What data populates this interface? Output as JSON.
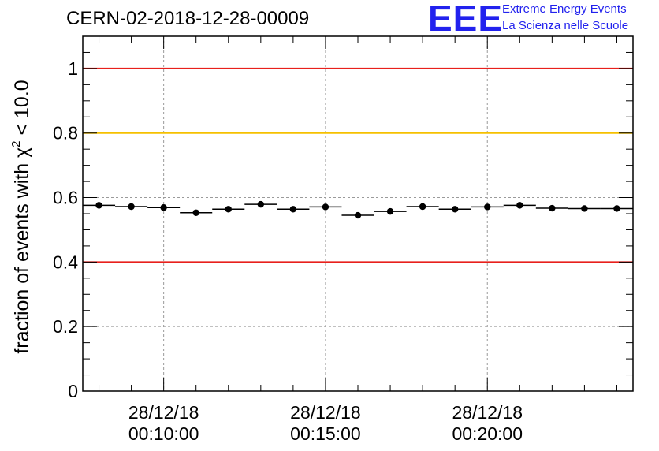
{
  "header": {
    "title": "CERN-02-2018-12-28-00009",
    "logo_mark": "EEE",
    "logo_line1": "Extreme Energy Events",
    "logo_line2": "La Scienza nelle Scuole"
  },
  "chart_data": {
    "type": "scatter",
    "title": "CERN-02-2018-12-28-00009",
    "ylabel": "fraction of events with χ² < 10.0",
    "ylabel_prefix": "fraction of events with χ",
    "ylabel_sup": "2",
    "ylabel_suffix": " < 10.0",
    "xlabel": "",
    "xlim": [
      7.5,
      24.5
    ],
    "ylim": [
      0,
      1.1
    ],
    "x_unit": "minutes after 00:00:00 on 28/12/18",
    "y_ticks": [
      {
        "value": 0,
        "label": "0"
      },
      {
        "value": 0.2,
        "label": "0.2"
      },
      {
        "value": 0.4,
        "label": "0.4"
      },
      {
        "value": 0.6,
        "label": "0.6"
      },
      {
        "value": 0.8,
        "label": "0.8"
      },
      {
        "value": 1.0,
        "label": "1"
      }
    ],
    "x_ticks": [
      {
        "value": 10,
        "date": "28/12/18",
        "time": "00:10:00"
      },
      {
        "value": 15,
        "date": "28/12/18",
        "time": "00:15:00"
      },
      {
        "value": 20,
        "date": "28/12/18",
        "time": "00:20:00"
      }
    ],
    "reference_lines": [
      {
        "y": 1.0,
        "color": "#e8201c"
      },
      {
        "y": 0.8,
        "color": "#f5c000"
      },
      {
        "y": 0.4,
        "color": "#e8201c"
      }
    ],
    "grid": true,
    "marker_color": "#000000",
    "bin_width_minutes": 1,
    "series": [
      {
        "name": "fraction",
        "x": [
          8,
          9,
          10,
          11,
          12,
          13,
          14,
          15,
          16,
          17,
          18,
          19,
          20,
          21,
          22,
          23,
          24
        ],
        "y": [
          0.576,
          0.572,
          0.569,
          0.553,
          0.564,
          0.579,
          0.564,
          0.571,
          0.545,
          0.557,
          0.572,
          0.564,
          0.571,
          0.576,
          0.567,
          0.566,
          0.566
        ]
      }
    ]
  }
}
